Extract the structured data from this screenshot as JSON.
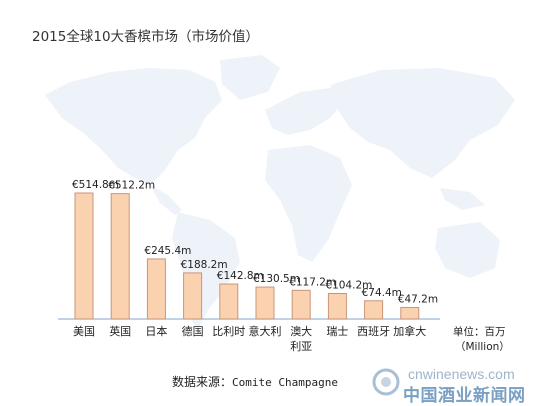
{
  "chart_data": {
    "type": "bar",
    "title": "2015全球10大香槟市场（市场价值）",
    "categories": [
      [
        "美国"
      ],
      [
        "英国"
      ],
      [
        "日本"
      ],
      [
        "德国"
      ],
      [
        "比利时"
      ],
      [
        "意大利"
      ],
      [
        "澳大",
        "利亚"
      ],
      [
        "瑞士"
      ],
      [
        "西班牙"
      ],
      [
        "加拿大"
      ]
    ],
    "values": [
      514.8,
      512.2,
      245.4,
      188.2,
      142.8,
      130.5,
      117.2,
      104.2,
      74.4,
      47.2
    ],
    "data_labels": [
      "€514.8m",
      "€512.2m",
      "€245.4m",
      "€188.2m",
      "€142.8m",
      "€130.5m",
      "€117.2m",
      "€104.2m",
      "€74.4m",
      "€47.2m"
    ],
    "unit_label": [
      "单位：百万",
      "（Million）"
    ],
    "ylim": [
      0,
      600
    ],
    "grid": false,
    "bar_fill": "#fbd2b0",
    "bar_stroke": "#c9957a",
    "baseline_color": "#9db8d8",
    "map_color": "#eef2f9"
  },
  "source": {
    "prefix": "数据来源：",
    "name": "Comite Champagne"
  },
  "watermark": {
    "url": "cnwinenews.com",
    "name": "中国酒业新闻网"
  }
}
